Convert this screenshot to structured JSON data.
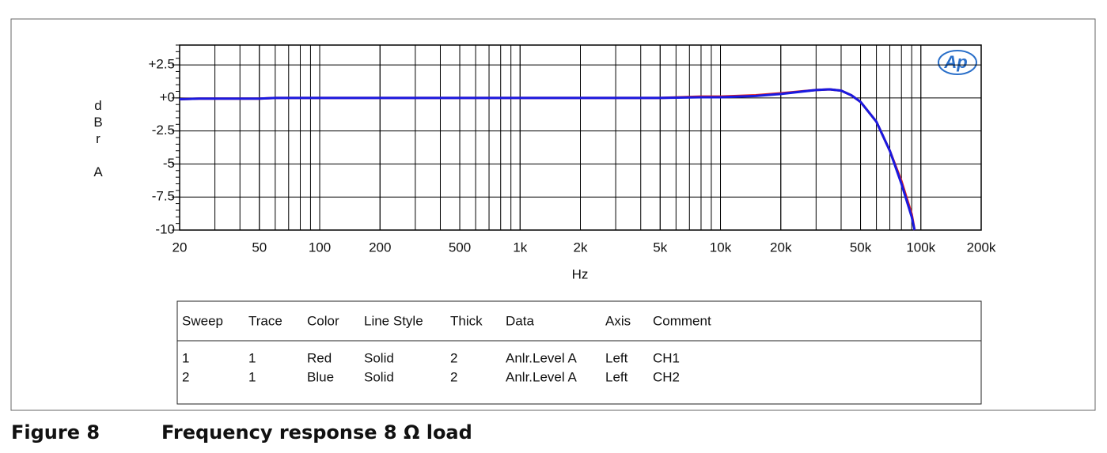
{
  "chart_data": {
    "type": "line",
    "ylabel": "dBr A",
    "xlabel": "Hz",
    "logo": "Ap",
    "xscale": "log",
    "grid": true,
    "xlim": [
      20,
      200000
    ],
    "xticks": [
      20,
      50,
      100,
      200,
      500,
      {
        "value": 1000,
        "label": "1k"
      },
      {
        "value": 2000,
        "label": "2k"
      },
      {
        "value": 5000,
        "label": "5k"
      },
      {
        "value": 10000,
        "label": "10k"
      },
      {
        "value": 20000,
        "label": "20k"
      },
      {
        "value": 50000,
        "label": "50k"
      },
      {
        "value": 100000,
        "label": "100k"
      },
      {
        "value": 200000,
        "label": "200k"
      }
    ],
    "ylim": [
      -10,
      4
    ],
    "yticks": [
      {
        "value": 2.5,
        "label": "+2.5"
      },
      {
        "value": 0,
        "label": "+0"
      },
      -2.5,
      -5,
      -7.5,
      -10
    ],
    "x": [
      20,
      25,
      50,
      60,
      100,
      1000,
      5000,
      8000,
      10000,
      15000,
      20000,
      30000,
      35000,
      40000,
      45000,
      50000,
      60000,
      70000,
      80000,
      90000,
      93000
    ],
    "series": [
      {
        "name": "CH1",
        "color": "#e02020",
        "values": [
          -0.1,
          -0.05,
          -0.05,
          0,
          0,
          0,
          0,
          0.1,
          0.1,
          0.2,
          0.35,
          0.6,
          0.65,
          0.55,
          0.2,
          -0.3,
          -1.8,
          -4,
          -6.3,
          -8.8,
          -10
        ]
      },
      {
        "name": "CH2",
        "color": "#1a1ae0",
        "values": [
          -0.1,
          -0.05,
          -0.05,
          0,
          0,
          0,
          0,
          0.05,
          0.05,
          0.15,
          0.3,
          0.6,
          0.65,
          0.55,
          0.2,
          -0.3,
          -1.8,
          -4,
          -6.5,
          -9,
          -10
        ]
      }
    ]
  },
  "legend_table": {
    "header": [
      "Sweep",
      "Trace",
      "Color",
      "Line Style",
      "Thick",
      "Data",
      "Axis",
      "Comment"
    ],
    "rows": [
      [
        "1",
        "1",
        "Red",
        "Solid",
        "2",
        "Anlr.Level A",
        "Left",
        "CH1"
      ],
      [
        "2",
        "1",
        "Blue",
        "Solid",
        "2",
        "Anlr.Level A",
        "Left",
        "CH2"
      ]
    ]
  },
  "caption": {
    "label": "Figure 8",
    "text": "Frequency response 8 Ω load"
  }
}
